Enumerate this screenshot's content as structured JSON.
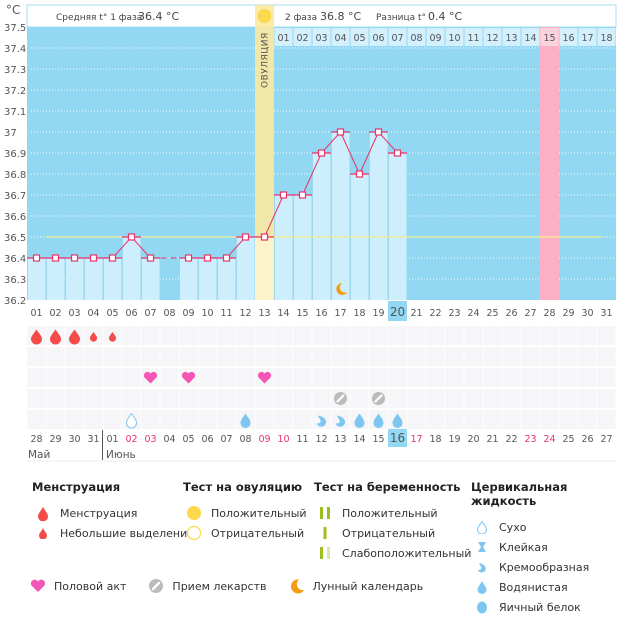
{
  "header": {
    "unit": "°C",
    "phase1_label": "Средняя t° 1 фаза",
    "phase1_value": "36.4 °C",
    "phase2_label": "2 фаза",
    "phase2_value": "36.8 °C",
    "diff_label": "Разница t°",
    "diff_value": "0.4 °C",
    "ovulation_label": "ОВУЛЯЦИЯ"
  },
  "chart_data": {
    "type": "line",
    "title": "",
    "xlabel": "",
    "ylabel": "°C",
    "ylim": [
      36.2,
      37.5
    ],
    "yticks": [
      "37.5",
      "37.4",
      "37.3",
      "37.2",
      "37.1",
      "37",
      "36.9",
      "36.8",
      "36.7",
      "36.6",
      "36.5",
      "36.4",
      "36.3",
      "36.2"
    ],
    "cycle_days": [
      "01",
      "02",
      "03",
      "04",
      "05",
      "06",
      "07",
      "08",
      "09",
      "10",
      "11",
      "12",
      "13",
      "14",
      "15",
      "16",
      "17",
      "18",
      "19",
      "20",
      "21",
      "22",
      "23",
      "24",
      "25",
      "26",
      "27",
      "28",
      "29",
      "30",
      "31"
    ],
    "series": [
      {
        "name": "Базальная температура",
        "values": [
          36.4,
          36.4,
          36.4,
          36.4,
          36.4,
          36.5,
          36.4,
          null,
          36.4,
          36.4,
          36.4,
          36.5,
          36.5,
          36.7,
          36.7,
          36.9,
          37.0,
          36.8,
          37.0,
          36.9,
          null,
          null,
          null,
          null,
          null,
          null,
          null,
          null,
          null,
          null,
          null
        ]
      }
    ],
    "coverline": 36.5,
    "ovulation_day": 13,
    "current_day": 20,
    "expected_period_day": 28,
    "phase2_day_labels": [
      "01",
      "02",
      "03",
      "04",
      "05",
      "06",
      "07",
      "08",
      "09",
      "10",
      "11",
      "12",
      "13",
      "14",
      "15",
      "16",
      "17",
      "18"
    ],
    "expected_period_phase2_index": 15,
    "moon_day": 17,
    "grid": true
  },
  "calendar": {
    "dates": [
      "28",
      "29",
      "30",
      "31",
      "01",
      "02",
      "03",
      "04",
      "05",
      "06",
      "07",
      "08",
      "09",
      "10",
      "11",
      "12",
      "13",
      "14",
      "15",
      "16",
      "17",
      "18",
      "19",
      "20",
      "21",
      "22",
      "23",
      "24",
      "25",
      "26",
      "27"
    ],
    "red_dates": [
      "02",
      "03",
      "09",
      "10",
      "17",
      "23",
      "24"
    ],
    "today_index": 19,
    "month_may": "Май",
    "month_june": "Июнь",
    "month_break_index": 4,
    "menstruation": [
      {
        "day": 1,
        "type": "heavy"
      },
      {
        "day": 2,
        "type": "heavy"
      },
      {
        "day": 3,
        "type": "heavy"
      },
      {
        "day": 4,
        "type": "light"
      },
      {
        "day": 5,
        "type": "light"
      }
    ],
    "intercourse_days": [
      7,
      9,
      13
    ],
    "medication_days": [
      17,
      19
    ],
    "cervical_fluid": [
      {
        "day": 6,
        "type": "dry"
      },
      {
        "day": 12,
        "type": "watery"
      },
      {
        "day": 16,
        "type": "creamy"
      },
      {
        "day": 17,
        "type": "creamy"
      },
      {
        "day": 18,
        "type": "watery"
      },
      {
        "day": 19,
        "type": "watery"
      },
      {
        "day": 20,
        "type": "watery"
      }
    ]
  },
  "legend": {
    "menstruation": {
      "title": "Менструация",
      "items": [
        "Менструация",
        "Небольшие выделения"
      ]
    },
    "ovulation_test": {
      "title": "Тест на овуляцию",
      "items": [
        "Положительный",
        "Отрицательный"
      ]
    },
    "pregnancy_test": {
      "title": "Тест на беременность",
      "items": [
        "Положительный",
        "Отрицательный",
        "Слабоположительный"
      ]
    },
    "cervical_fluid": {
      "title": "Цервикальная жидкость",
      "items": [
        "Сухо",
        "Клейкая",
        "Кремообразная",
        "Водянистая",
        "Яичный белок"
      ]
    },
    "bottom": [
      "Половой акт",
      "Прием лекарств",
      "Лунный календарь"
    ]
  },
  "colors": {
    "plot_bg": "#92d8f2",
    "bar_fill": "#cdeefc",
    "line": "#e8336b",
    "coverline": "#f5ef8f",
    "ovulation_band": "#fbe9a0",
    "period_band": "#fbb0c6",
    "heavy_drop": "#f44b4b",
    "heart": "#f357b5",
    "pill": "#bbbbbb",
    "moon": "#f39c12",
    "fluid": "#7cc6f0",
    "sun": "#fdd84d",
    "preg_green": "#9cbf1e",
    "preg_light": "#d9e8a8",
    "red_date": "#e8336b"
  }
}
